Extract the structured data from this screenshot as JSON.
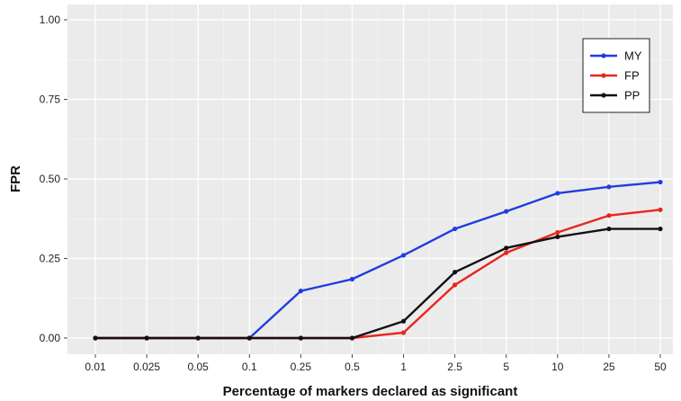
{
  "chart_data": {
    "type": "line",
    "xlabel": "Percentage of markers declared as significant",
    "ylabel": "FPR",
    "categories": [
      "0.01",
      "0.025",
      "0.05",
      "0.1",
      "0.25",
      "0.5",
      "1",
      "2.5",
      "5",
      "10",
      "25",
      "50"
    ],
    "ylim": [
      0,
      1
    ],
    "yticks": [
      "0.00",
      "0.25",
      "0.50",
      "0.75",
      "1.00"
    ],
    "grid": true,
    "legend_position": "top-right",
    "series": [
      {
        "name": "MY",
        "color": "#1f3de0",
        "values": [
          0,
          0,
          0,
          0,
          0.148,
          0.185,
          0.26,
          0.343,
          0.398,
          0.455,
          0.475,
          0.49
        ]
      },
      {
        "name": "FP",
        "color": "#e8261c",
        "values": [
          0,
          0,
          0,
          0,
          0,
          0,
          0.017,
          0.167,
          0.268,
          0.332,
          0.385,
          0.403
        ]
      },
      {
        "name": "PP",
        "color": "#111111",
        "values": [
          0,
          0,
          0,
          0,
          0,
          0,
          0.053,
          0.207,
          0.283,
          0.318,
          0.343,
          0.343
        ]
      }
    ]
  }
}
